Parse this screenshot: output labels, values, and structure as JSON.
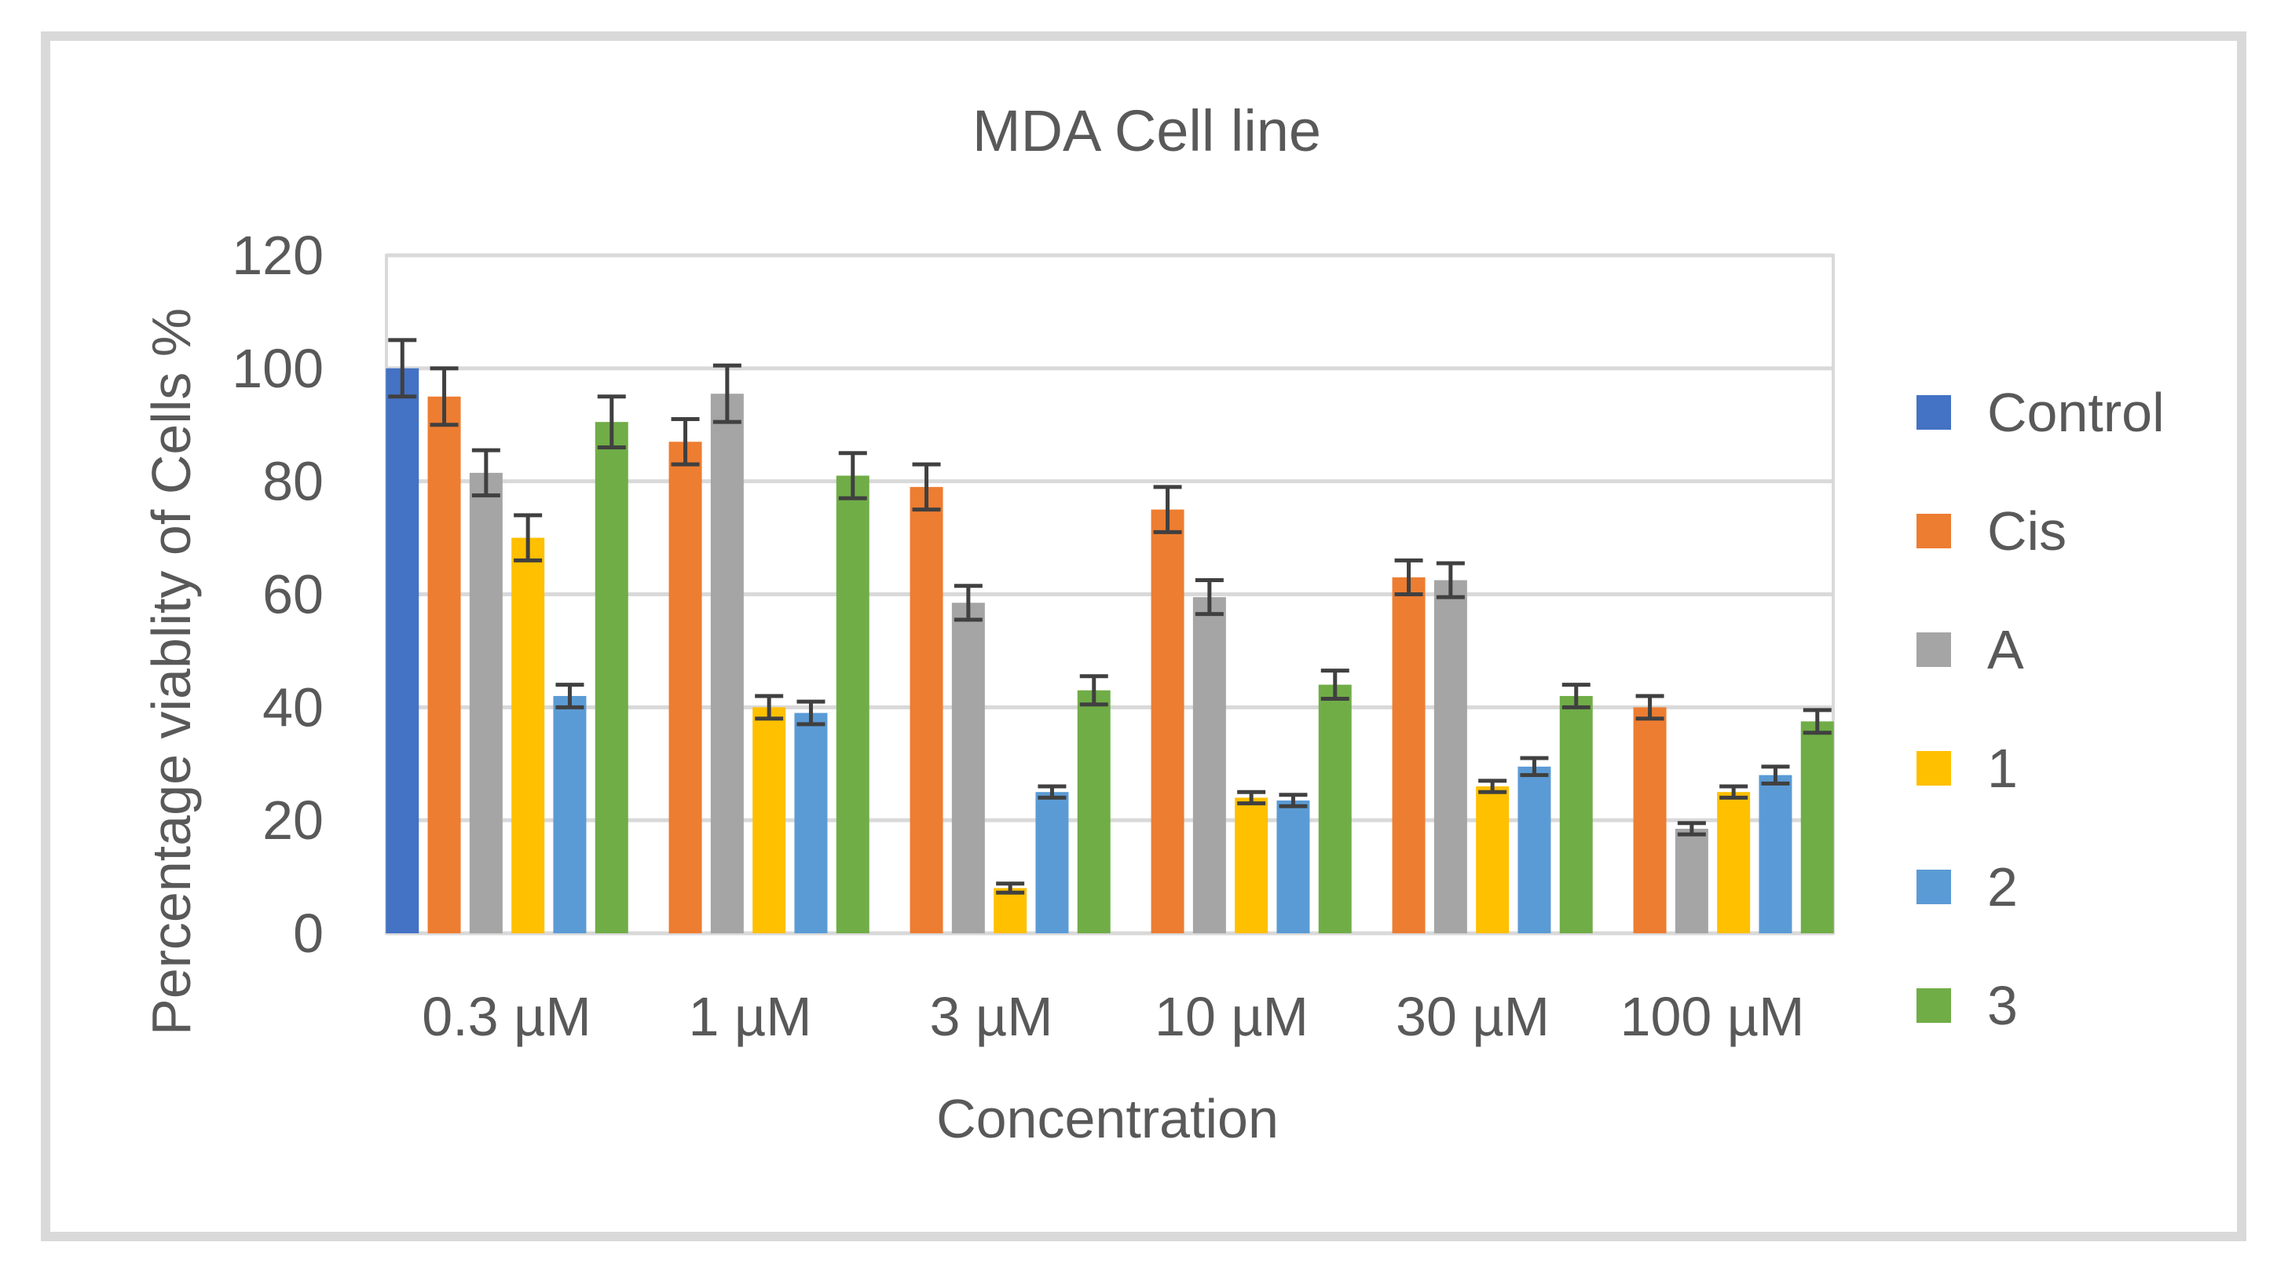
{
  "chart_data": {
    "type": "bar",
    "title": "MDA Cell line",
    "xlabel": "Concentration",
    "ylabel": "Percentage viablity of Cells %",
    "ylim": [
      0,
      120
    ],
    "yticks": [
      0,
      20,
      40,
      60,
      80,
      100,
      120
    ],
    "grid": true,
    "legend_position": "right",
    "categories": [
      "0.3 µM",
      "1 µM",
      "3 µM",
      "10 µM",
      "30 µM",
      "100 µM"
    ],
    "series": [
      {
        "name": "Control",
        "color": "#4472c4",
        "values": [
          100,
          null,
          null,
          null,
          null,
          null
        ],
        "errors": [
          5,
          null,
          null,
          null,
          null,
          null
        ]
      },
      {
        "name": "Cis",
        "color": "#ed7d31",
        "values": [
          95,
          87,
          79,
          75,
          63,
          40
        ],
        "errors": [
          5,
          4,
          4,
          4,
          3,
          2
        ]
      },
      {
        "name": "A",
        "color": "#a5a5a5",
        "values": [
          81.5,
          95.5,
          58.5,
          59.5,
          62.5,
          18.5
        ],
        "errors": [
          4,
          5,
          3,
          3,
          3,
          1
        ]
      },
      {
        "name": "1",
        "color": "#ffc000",
        "values": [
          70,
          40,
          8,
          24,
          26,
          25
        ],
        "errors": [
          4,
          2,
          0.8,
          1,
          1,
          1
        ]
      },
      {
        "name": "2",
        "color": "#5b9bd5",
        "values": [
          42,
          39,
          25,
          23.5,
          29.5,
          28
        ],
        "errors": [
          2,
          2,
          1,
          1,
          1.5,
          1.5
        ]
      },
      {
        "name": "3",
        "color": "#70ad47",
        "values": [
          90.5,
          81,
          43,
          44,
          42,
          37.5
        ],
        "errors": [
          4.5,
          4,
          2.5,
          2.5,
          2,
          2
        ]
      }
    ]
  }
}
